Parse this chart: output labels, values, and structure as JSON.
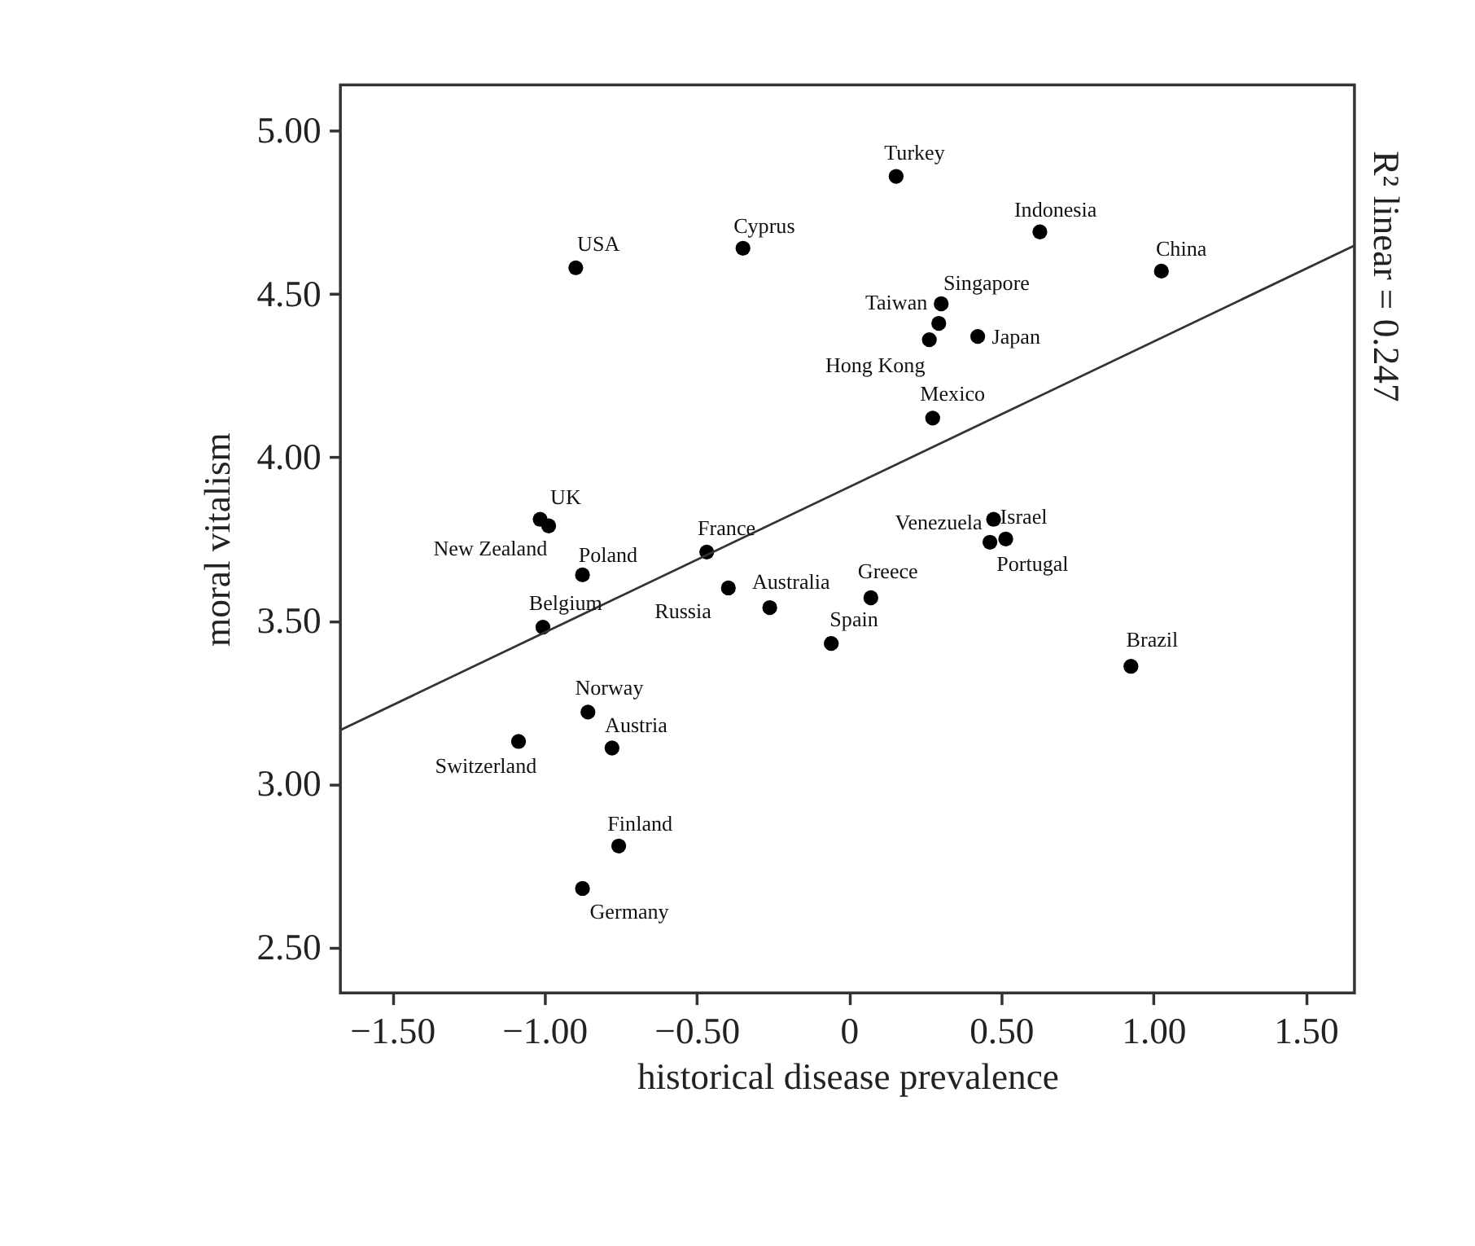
{
  "chart_data": {
    "type": "scatter",
    "xlabel": "historical disease prevalence",
    "ylabel": "moral vitalism",
    "xlim": [
      -1.67,
      1.66
    ],
    "ylim": [
      2.36,
      5.14
    ],
    "xticks": [
      {
        "value": -1.5,
        "label": "−1.50"
      },
      {
        "value": -1.0,
        "label": "−1.00"
      },
      {
        "value": -0.5,
        "label": "−0.50"
      },
      0,
      {
        "value": 0.5,
        "label": "0.50"
      },
      {
        "value": 1.0,
        "label": "1.00"
      },
      {
        "value": 1.5,
        "label": "1.50"
      }
    ],
    "yticks": [
      {
        "value": 2.5,
        "label": "2.50"
      },
      {
        "value": 3.0,
        "label": "3.00"
      },
      {
        "value": 3.5,
        "label": "3.50"
      },
      {
        "value": 4.0,
        "label": "4.00"
      },
      {
        "value": 4.5,
        "label": "4.50"
      },
      {
        "value": 5.0,
        "label": "5.00"
      }
    ],
    "series": [
      {
        "type": "scatter",
        "marker": "circle",
        "color": "#000000",
        "x": [
          -0.897,
          -0.348,
          0.155,
          0.627,
          1.026,
          0.303,
          0.295,
          0.264,
          0.423,
          0.275,
          -1.014,
          -0.986,
          -0.467,
          -0.875,
          -0.396,
          -0.26,
          -1.005,
          0.072,
          -0.058,
          0.475,
          0.515,
          0.463,
          0.926,
          -0.857,
          -1.085,
          -0.778,
          -0.756,
          -0.875
        ],
        "values": [
          4.58,
          4.64,
          4.86,
          4.69,
          4.57,
          4.47,
          4.41,
          4.36,
          4.37,
          4.12,
          3.81,
          3.79,
          3.71,
          3.64,
          3.6,
          3.54,
          3.48,
          3.57,
          3.43,
          3.81,
          3.75,
          3.74,
          3.36,
          3.22,
          3.13,
          3.11,
          2.81,
          2.68
        ]
      },
      {
        "type": "line",
        "marker": "none",
        "color": "#333333",
        "x": [
          -1.67,
          1.66
        ],
        "values": [
          3.165,
          4.648
        ]
      }
    ],
    "annotations": [
      "R² linear = 0.247",
      {
        "text": "USA",
        "x": -0.897,
        "y": 4.58
      },
      {
        "text": "Cyprus",
        "x": -0.348,
        "y": 4.64
      },
      {
        "text": "Turkey",
        "x": 0.155,
        "y": 4.86
      },
      {
        "text": "Indonesia",
        "x": 0.627,
        "y": 4.69
      },
      {
        "text": "China",
        "x": 1.026,
        "y": 4.57
      },
      {
        "text": "Singapore",
        "x": 0.303,
        "y": 4.47
      },
      {
        "text": "Taiwan",
        "x": 0.295,
        "y": 4.41
      },
      {
        "text": "Hong Kong",
        "x": 0.264,
        "y": 4.36
      },
      {
        "text": "Japan",
        "x": 0.423,
        "y": 4.37
      },
      {
        "text": "Mexico",
        "x": 0.275,
        "y": 4.12
      },
      {
        "text": "UK",
        "x": -1.014,
        "y": 3.81
      },
      {
        "text": "New Zealand",
        "x": -0.986,
        "y": 3.79
      },
      {
        "text": "France",
        "x": -0.467,
        "y": 3.71
      },
      {
        "text": "Poland",
        "x": -0.875,
        "y": 3.64
      },
      {
        "text": "Russia",
        "x": -0.396,
        "y": 3.6
      },
      {
        "text": "Australia",
        "x": -0.26,
        "y": 3.54
      },
      {
        "text": "Belgium",
        "x": -1.005,
        "y": 3.48
      },
      {
        "text": "Greece",
        "x": 0.072,
        "y": 3.57
      },
      {
        "text": "Spain",
        "x": -0.058,
        "y": 3.43
      },
      {
        "text": "Venezuela",
        "x": 0.475,
        "y": 3.81
      },
      {
        "text": "Israel",
        "x": 0.515,
        "y": 3.75
      },
      {
        "text": "Portugal",
        "x": 0.463,
        "y": 3.74
      },
      {
        "text": "Brazil",
        "x": 0.926,
        "y": 3.36
      },
      {
        "text": "Norway",
        "x": -0.857,
        "y": 3.22
      },
      {
        "text": "Switzerland",
        "x": -1.085,
        "y": 3.13
      },
      {
        "text": "Austria",
        "x": -0.778,
        "y": 3.11
      },
      {
        "text": "Finland",
        "x": -0.756,
        "y": 2.81
      },
      {
        "text": "Germany",
        "x": -0.875,
        "y": 2.68
      }
    ]
  }
}
